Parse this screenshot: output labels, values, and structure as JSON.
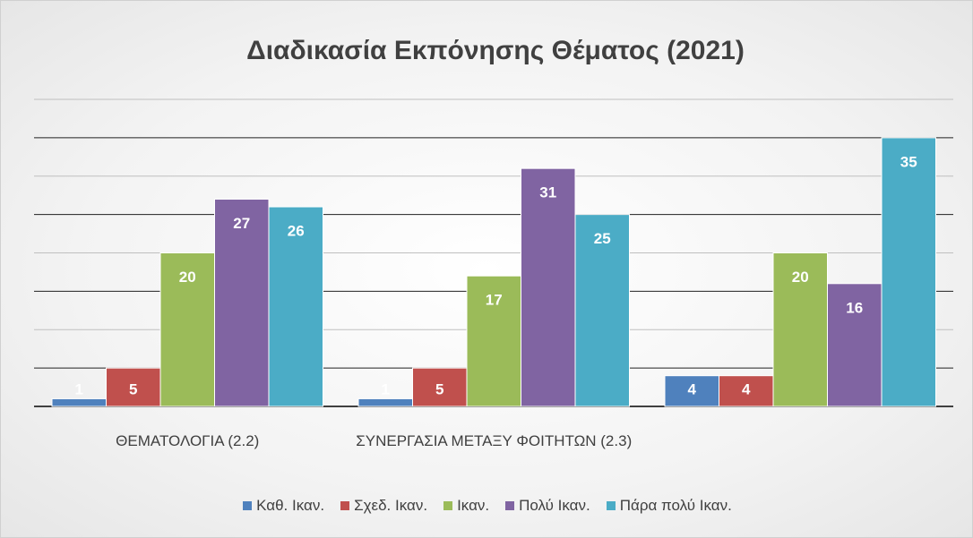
{
  "chart_data": {
    "type": "bar",
    "title": "Διαδικασία Εκπόνησης Θέματος (2021)",
    "categories": [
      "ΘΕΜΑΤΟΛΟΓΙΑ (2.2)",
      "ΣΥΝΕΡΓΑΣΙΑ ΜΕΤΑΞΥ ΦΟΙΤΗΤΩΝ (2.3)",
      null
    ],
    "series": [
      {
        "name": "Καθ. Ικαν.",
        "color": "#4f81bd",
        "values": [
          1,
          1,
          4
        ]
      },
      {
        "name": "Σχεδ. Ικαν.",
        "color": "#c0504d",
        "values": [
          5,
          5,
          4
        ]
      },
      {
        "name": "Ικαν.",
        "color": "#9bbb59",
        "values": [
          20,
          17,
          20
        ]
      },
      {
        "name": "Πολύ Ικαν.",
        "color": "#8064a2",
        "values": [
          27,
          31,
          16
        ]
      },
      {
        "name": "Πάρα πολύ Ικαν.",
        "color": "#4bacc6",
        "values": [
          26,
          25,
          35
        ]
      }
    ],
    "ylim": [
      0,
      40
    ],
    "yticks": [
      0,
      5,
      10,
      15,
      20,
      25,
      30,
      35,
      40
    ],
    "grid": true,
    "legend": "bottom"
  }
}
